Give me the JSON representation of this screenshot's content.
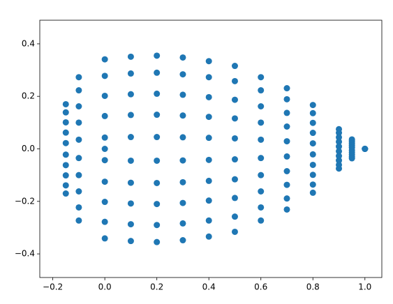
{
  "chart_data": {
    "type": "scatter",
    "color": "#1f77b4",
    "xlim": [
      -0.25,
      1.065
    ],
    "ylim": [
      -0.49,
      0.49
    ],
    "xticks": [
      {
        "value": -0.2,
        "label": "−0.2"
      },
      {
        "value": 0,
        "label": "0.0"
      },
      {
        "value": 0.2,
        "label": "0.2"
      },
      {
        "value": 0.4,
        "label": "0.4"
      },
      {
        "value": 0.6,
        "label": "0.6"
      },
      {
        "value": 0.8,
        "label": "0.8"
      },
      {
        "value": 1,
        "label": "1.0"
      }
    ],
    "yticks": [
      {
        "value": -0.4,
        "label": "−0.4"
      },
      {
        "value": -0.2,
        "label": "−0.2"
      },
      {
        "value": 0,
        "label": "0.0"
      },
      {
        "value": 0.2,
        "label": "0.2"
      },
      {
        "value": 0.4,
        "label": "0.4"
      }
    ],
    "x": [
      1,
      0.95,
      0.9,
      0.8,
      0.7,
      0.6,
      0.5,
      0.4,
      0.3,
      0.2,
      0.1,
      0,
      -0.1,
      -0.15,
      1,
      0.95,
      0.9,
      0.8,
      0.7,
      0.6,
      0.5,
      0.4,
      0.3,
      0.2,
      0.1,
      0,
      -0.1,
      -0.15,
      1,
      0.95,
      0.9,
      0.8,
      0.7,
      0.6,
      0.5,
      0.4,
      0.3,
      0.2,
      0.1,
      0,
      -0.1,
      -0.15,
      1,
      0.95,
      0.9,
      0.8,
      0.7,
      0.6,
      0.5,
      0.4,
      0.3,
      0.2,
      0.1,
      0,
      -0.1,
      -0.15,
      1,
      0.95,
      0.9,
      0.8,
      0.7,
      0.6,
      0.5,
      0.4,
      0.3,
      0.2,
      0.1,
      0,
      -0.1,
      -0.15,
      0.95,
      0.9,
      0.8,
      0.7,
      0.6,
      0.5,
      0.4,
      0.3,
      0.2,
      0.1,
      0,
      -0.1,
      -0.15,
      0.95,
      0.9,
      0.8,
      0.7,
      0.6,
      0.5,
      0.4,
      0.3,
      0.2,
      0.1,
      0,
      -0.1,
      -0.15,
      0.95,
      0.9,
      0.8,
      0.7,
      0.6,
      0.5,
      0.4,
      0.3,
      0.2,
      0.1,
      0,
      -0.1,
      -0.15,
      0.95,
      0.9,
      0.8,
      0.7,
      0.6,
      0.5,
      0.4,
      0.3,
      0.2,
      0.1,
      0,
      -0.1,
      -0.15,
      0.95,
      0.9,
      0.8,
      0.7,
      0.6,
      0.5,
      0.4,
      0.3,
      0.2,
      0.1,
      0,
      -0.1,
      -0.15,
      0
    ],
    "y": [
      0,
      0.036,
      0.075,
      0.167,
      0.231,
      0.273,
      0.316,
      0.334,
      0.348,
      0.355,
      0.351,
      0.341,
      0.273,
      0.17,
      0,
      0.029,
      0.061,
      0.136,
      0.189,
      0.223,
      0.258,
      0.273,
      0.284,
      0.29,
      0.287,
      0.278,
      0.223,
      0.139,
      0,
      0.021,
      0.044,
      0.099,
      0.137,
      0.162,
      0.187,
      0.197,
      0.206,
      0.21,
      0.208,
      0.202,
      0.162,
      0.101,
      0,
      0.013,
      0.027,
      0.061,
      0.085,
      0.1,
      0.116,
      0.122,
      0.127,
      0.13,
      0.129,
      0.125,
      0.1,
      0.062,
      0,
      0.005,
      0.009,
      0.021,
      0.029,
      0.035,
      0.04,
      0.042,
      0.044,
      0.045,
      0.045,
      0.043,
      0.035,
      0.022,
      -0.036,
      -0.075,
      -0.167,
      -0.231,
      -0.273,
      -0.316,
      -0.334,
      -0.348,
      -0.355,
      -0.351,
      -0.341,
      -0.273,
      -0.17,
      -0.029,
      -0.061,
      -0.136,
      -0.189,
      -0.223,
      -0.258,
      -0.273,
      -0.284,
      -0.29,
      -0.287,
      -0.278,
      -0.223,
      -0.139,
      -0.021,
      -0.044,
      -0.099,
      -0.137,
      -0.162,
      -0.187,
      -0.197,
      -0.206,
      -0.21,
      -0.208,
      -0.202,
      -0.162,
      -0.101,
      -0.013,
      -0.027,
      -0.061,
      -0.085,
      -0.1,
      -0.116,
      -0.122,
      -0.127,
      -0.13,
      -0.129,
      -0.125,
      -0.1,
      -0.062,
      -0.005,
      -0.009,
      -0.021,
      -0.029,
      -0.035,
      -0.04,
      -0.042,
      -0.044,
      -0.045,
      -0.045,
      -0.043,
      -0.035,
      -0.022,
      0
    ]
  }
}
